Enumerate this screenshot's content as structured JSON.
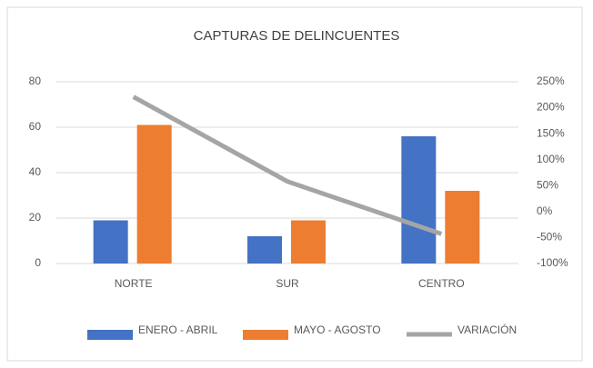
{
  "chart_data": {
    "type": "bar-line",
    "title": "CAPTURAS DE DELINCUENTES",
    "categories": [
      "NORTE",
      "SUR",
      "CENTRO"
    ],
    "series": [
      {
        "name": "ENERO - ABRIL",
        "color": "#4472c4",
        "values": [
          19,
          12,
          56
        ]
      },
      {
        "name": "MAYO - AGOSTO",
        "color": "#ed7d31",
        "values": [
          61,
          19,
          32
        ]
      },
      {
        "name": "VARIACIÓN",
        "color": "#a5a5a5",
        "values": [
          221,
          58,
          -43
        ],
        "axis": "y2"
      }
    ],
    "ylim": [
      0,
      80
    ],
    "yticks": [
      0,
      20,
      40,
      60,
      80
    ],
    "y2lim": [
      -100,
      250
    ],
    "y2ticks": [
      {
        "value": -100,
        "label": "-100%"
      },
      {
        "value": -50,
        "label": "-50%"
      },
      {
        "value": 0,
        "label": "0%"
      },
      {
        "value": 50,
        "label": "50%"
      },
      {
        "value": 100,
        "label": "100%"
      },
      {
        "value": 150,
        "label": "150%"
      },
      {
        "value": 200,
        "label": "200%"
      },
      {
        "value": 250,
        "label": "250%"
      }
    ],
    "grid": true,
    "legend": "bottom"
  }
}
